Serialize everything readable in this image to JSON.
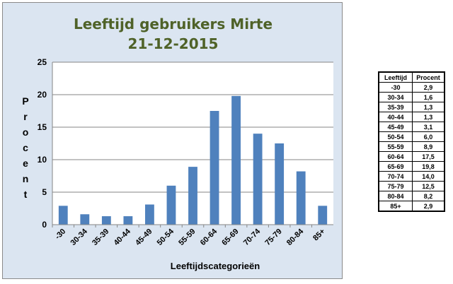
{
  "chart_data": {
    "type": "bar",
    "title": "Leeftijd gebruikers Mirte",
    "subtitle": "21-12-2015",
    "xlabel": "Leeftijdscategorieën",
    "ylabel": "Procent",
    "categories": [
      "-30",
      "30-34",
      "35-39",
      "40-44",
      "45-49",
      "50-54",
      "55-59",
      "60-64",
      "65-69",
      "70-74",
      "75-79",
      "80-84",
      "85+"
    ],
    "values": [
      2.9,
      1.6,
      1.3,
      1.3,
      3.1,
      6.0,
      8.9,
      17.5,
      19.8,
      14.0,
      12.5,
      8.2,
      2.9
    ],
    "ylim": [
      0,
      25
    ],
    "yticks": [
      0,
      5,
      10,
      15,
      20,
      25
    ],
    "grid": true,
    "bar_color": "#4f81bd",
    "background_color": "#dbe5f1"
  },
  "table": {
    "headers": [
      "Leeftijd",
      "Procent"
    ],
    "rows": [
      [
        "-30",
        "2,9"
      ],
      [
        "30-34",
        "1,6"
      ],
      [
        "35-39",
        "1,3"
      ],
      [
        "40-44",
        "1,3"
      ],
      [
        "45-49",
        "3,1"
      ],
      [
        "50-54",
        "6,0"
      ],
      [
        "55-59",
        "8,9"
      ],
      [
        "60-64",
        "17,5"
      ],
      [
        "65-69",
        "19,8"
      ],
      [
        "70-74",
        "14,0"
      ],
      [
        "75-79",
        "12,5"
      ],
      [
        "80-84",
        "8,2"
      ],
      [
        "85+",
        "2,9"
      ]
    ]
  }
}
